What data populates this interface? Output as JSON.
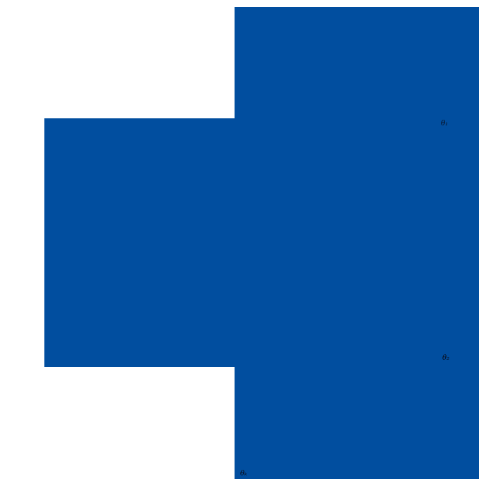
{
  "figure": {
    "background_color": "#FFFFFF",
    "rect_color": "#014E9F",
    "label_color": "#0A0A14",
    "labels": {
      "theta_1": "θ₁",
      "theta_2": "θ₂",
      "theta_k": "θₖ"
    }
  }
}
